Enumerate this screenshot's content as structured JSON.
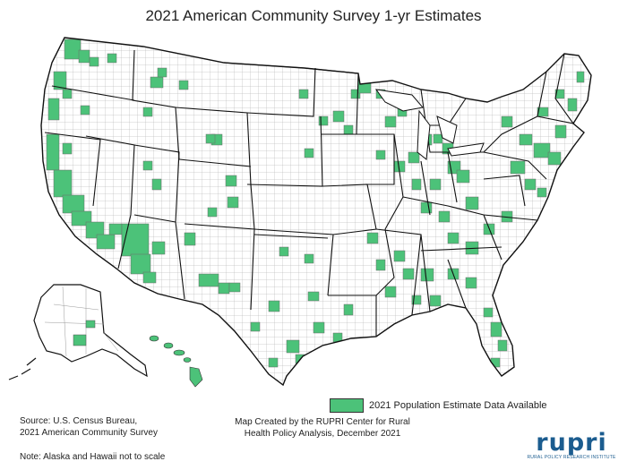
{
  "title": "2021 American Community Survey 1-yr Estimates",
  "legend": {
    "label": "2021 Population Estimate Data Available",
    "color": "#4cc279"
  },
  "source": {
    "line1": "Source:  U.S. Census Bureau,",
    "line2": "2021  American Community Survey"
  },
  "note": "Note: Alaska and Hawaii not to scale",
  "credit": {
    "line1": "Map Created by the RUPRI Center for Rural",
    "line2": "Health Policy Analysis, December 2021"
  },
  "logo": {
    "word": "rupri",
    "subtitle": "RURAL POLICY RESEARCH INSTITUTE",
    "color": "#1b5c8f"
  },
  "colors": {
    "highlight": "#4cc279",
    "county_line": "#9a9a9a",
    "state_line": "#111111",
    "fill": "#ffffff"
  }
}
